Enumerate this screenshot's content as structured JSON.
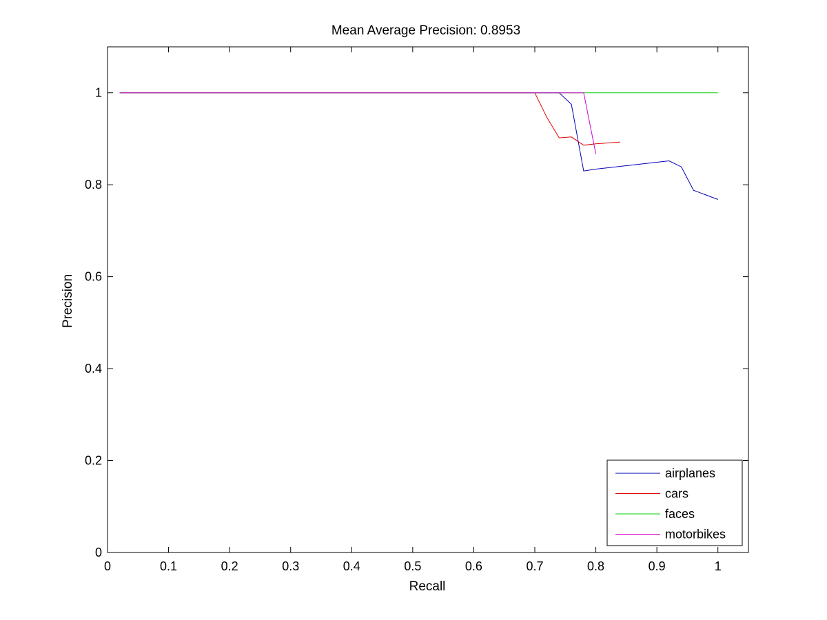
{
  "chart_data": {
    "type": "line",
    "title": "Mean Average Precision: 0.8953",
    "xlabel": "Recall",
    "ylabel": "Precision",
    "xlim": [
      0,
      1.05
    ],
    "ylim": [
      0,
      1.1
    ],
    "xticks": [
      0,
      0.1,
      0.2,
      0.3,
      0.4,
      0.5,
      0.6,
      0.7,
      0.8,
      0.9,
      1
    ],
    "xtick_labels": [
      "0",
      "0.1",
      "0.2",
      "0.3",
      "0.4",
      "0.5",
      "0.6",
      "0.7",
      "0.8",
      "0.9",
      "1"
    ],
    "yticks": [
      0,
      0.2,
      0.4,
      0.6,
      0.8,
      1
    ],
    "ytick_labels": [
      "0",
      "0.2",
      "0.4",
      "0.6",
      "0.8",
      "1"
    ],
    "grid": false,
    "legend_position": "bottom-right",
    "series": [
      {
        "name": "airplanes",
        "color": "#0000b4",
        "x": [
          0.02,
          0.74,
          0.76,
          0.78,
          0.8,
          0.82,
          0.84,
          0.86,
          0.88,
          0.9,
          0.92,
          0.94,
          0.96,
          0.98,
          1.0
        ],
        "y": [
          1.0,
          1.0,
          0.975,
          0.83,
          0.834,
          0.837,
          0.84,
          0.843,
          0.846,
          0.849,
          0.852,
          0.839,
          0.788,
          0.778,
          0.768
        ]
      },
      {
        "name": "cars",
        "color": "#e00000",
        "x": [
          0.02,
          0.7,
          0.72,
          0.74,
          0.76,
          0.78,
          0.8,
          0.82,
          0.84
        ],
        "y": [
          1.0,
          1.0,
          0.946,
          0.902,
          0.904,
          0.886,
          0.889,
          0.891,
          0.893
        ]
      },
      {
        "name": "faces",
        "color": "#00d000",
        "x": [
          0.02,
          1.0
        ],
        "y": [
          1.0,
          1.0
        ]
      },
      {
        "name": "motorbikes",
        "color": "#d000d0",
        "x": [
          0.02,
          0.78,
          0.8
        ],
        "y": [
          1.0,
          1.0,
          0.867
        ]
      }
    ]
  }
}
